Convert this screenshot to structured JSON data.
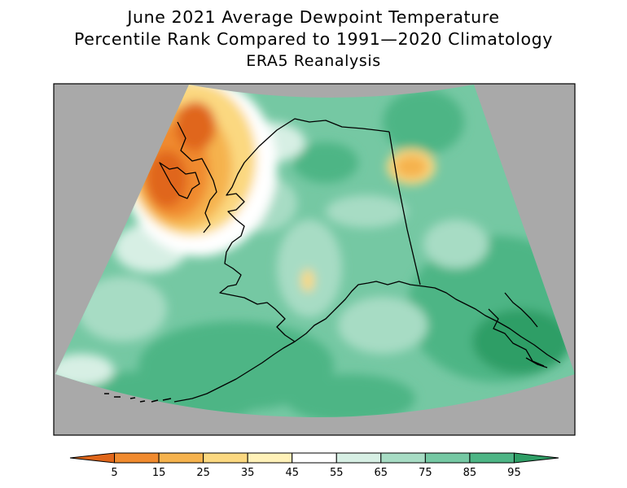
{
  "title": {
    "line1": "June 2021 Average Dewpoint Temperature",
    "line2": "Percentile Rank Compared to 1991—2020 Climatology",
    "line3": "ERA5 Reanalysis"
  },
  "map": {
    "background_color": "#a9a9a9",
    "frame_color": "#000000",
    "coastline_color": "#000000"
  },
  "colorbar": {
    "tick_labels": [
      "5",
      "15",
      "25",
      "35",
      "45",
      "55",
      "65",
      "75",
      "85",
      "95"
    ],
    "colors": [
      "#e0661a",
      "#f08a2e",
      "#f5b24d",
      "#fbd880",
      "#fff1b8",
      "#ffffff",
      "#d7efe4",
      "#a7dcc4",
      "#75c8a3",
      "#4db585",
      "#2f9e66"
    ]
  }
}
